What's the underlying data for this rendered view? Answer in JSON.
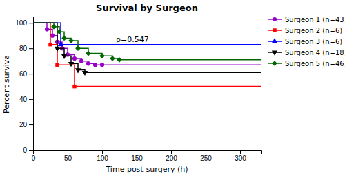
{
  "chart_data": {
    "type": "line",
    "title": "Survival by Surgeon",
    "x_label": "Time post-surgery (h)",
    "y_label": "Percent survival",
    "xlim": [
      0,
      330
    ],
    "ylim": [
      0,
      105
    ],
    "xticks": [
      0,
      50,
      100,
      150,
      200,
      250,
      300
    ],
    "yticks": [
      0,
      20,
      40,
      60,
      80,
      100
    ],
    "grid": false,
    "legend": "right",
    "annotations": [
      {
        "text": "p=0.547",
        "x": 120,
        "y": 87
      }
    ],
    "series": [
      {
        "name": "Surgeon 1 (n=43)",
        "color": "#9900cc",
        "marker": "circle",
        "x": [
          0,
          20,
          20,
          28,
          28,
          35,
          35,
          42,
          42,
          50,
          50,
          60,
          60,
          70,
          70,
          80,
          80,
          90,
          90,
          100,
          100,
          330
        ],
        "values": [
          100,
          100,
          95,
          95,
          90,
          90,
          85,
          85,
          80,
          80,
          75,
          75,
          72,
          72,
          70,
          70,
          68,
          68,
          67,
          67,
          67,
          67
        ],
        "marker_x": [
          20,
          28,
          35,
          42,
          50,
          60,
          70,
          80,
          90,
          100
        ],
        "marker_values": [
          95,
          90,
          85,
          80,
          75,
          72,
          70,
          68,
          67,
          67
        ]
      },
      {
        "name": "Surgeon 2 (n=6)",
        "color": "#ff0000",
        "marker": "square",
        "x": [
          0,
          25,
          25,
          35,
          35,
          60,
          60,
          330
        ],
        "values": [
          100,
          100,
          83,
          83,
          67,
          67,
          50,
          50
        ],
        "marker_x": [
          25,
          35,
          60
        ],
        "marker_values": [
          83,
          67,
          50
        ]
      },
      {
        "name": "Surgeon 3 (n=6)",
        "color": "#0000ff",
        "marker": "triangle-up",
        "x": [
          0,
          40,
          40,
          330
        ],
        "values": [
          100,
          100,
          83,
          83
        ],
        "marker_x": [
          40
        ],
        "marker_values": [
          83
        ]
      },
      {
        "name": "Surgeon 4 (n=18)",
        "color": "#000000",
        "marker": "triangle-down",
        "x": [
          0,
          35,
          35,
          45,
          45,
          55,
          55,
          65,
          65,
          75,
          75,
          330
        ],
        "values": [
          100,
          100,
          80,
          80,
          74,
          74,
          68,
          68,
          63,
          63,
          61,
          61
        ],
        "marker_x": [
          35,
          45,
          55,
          65,
          75
        ],
        "marker_values": [
          80,
          74,
          68,
          63,
          61
        ]
      },
      {
        "name": "Surgeon 5 (n=46)",
        "color": "#006600",
        "marker": "diamond",
        "x": [
          0,
          30,
          30,
          38,
          38,
          45,
          45,
          55,
          55,
          65,
          65,
          80,
          80,
          100,
          100,
          115,
          115,
          125,
          125,
          330
        ],
        "values": [
          100,
          100,
          97,
          97,
          93,
          93,
          88,
          88,
          86,
          86,
          80,
          80,
          76,
          76,
          74,
          74,
          72,
          72,
          71,
          71
        ],
        "marker_x": [
          30,
          38,
          45,
          55,
          65,
          80,
          100,
          115,
          125
        ],
        "marker_values": [
          97,
          93,
          88,
          86,
          80,
          76,
          74,
          72,
          71
        ]
      }
    ]
  }
}
